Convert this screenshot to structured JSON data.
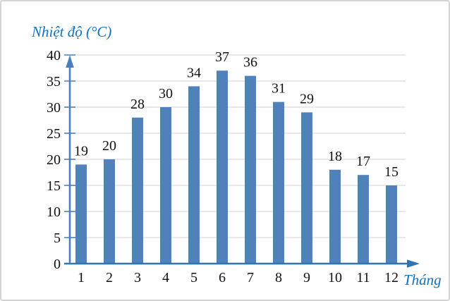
{
  "chart_data": {
    "type": "bar",
    "title": "",
    "ylabel": "Nhiệt độ (°C)",
    "xlabel": "Tháng",
    "categories": [
      "1",
      "2",
      "3",
      "4",
      "5",
      "6",
      "7",
      "8",
      "9",
      "10",
      "11",
      "12"
    ],
    "values": [
      19,
      20,
      28,
      30,
      34,
      37,
      36,
      31,
      29,
      18,
      17,
      15
    ],
    "ylim": [
      0,
      40
    ],
    "yticks": [
      0,
      5,
      10,
      15,
      20,
      25,
      30,
      35,
      40
    ],
    "grid": true,
    "legend": "none",
    "colors": {
      "bar": "#4f81bd",
      "y_axis": "#4c7ebe",
      "x_axis": "#2e75b6",
      "gridline": "#d9d9d9",
      "tick_label": "#111111",
      "value_label": "#111111",
      "axis_title": "#0f72c1"
    }
  }
}
